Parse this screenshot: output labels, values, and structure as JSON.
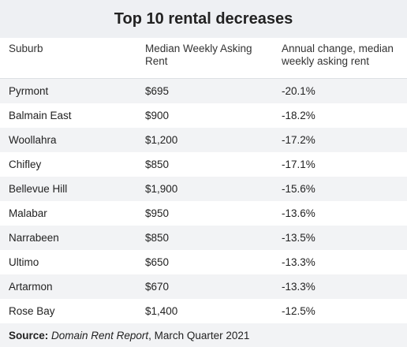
{
  "title": "Top 10 rental decreases",
  "columns": [
    "Suburb",
    "Median Weekly Asking Rent",
    "Annual change, median weekly asking rent"
  ],
  "rows": [
    {
      "suburb": "Pyrmont",
      "rent": "$695",
      "change": "-20.1%"
    },
    {
      "suburb": "Balmain East",
      "rent": "$900",
      "change": "-18.2%"
    },
    {
      "suburb": "Woollahra",
      "rent": "$1,200",
      "change": "-17.2%"
    },
    {
      "suburb": "Chifley",
      "rent": "$850",
      "change": "-17.1%"
    },
    {
      "suburb": "Bellevue Hill",
      "rent": "$1,900",
      "change": "-15.6%"
    },
    {
      "suburb": "Malabar",
      "rent": "$950",
      "change": "-13.6%"
    },
    {
      "suburb": "Narrabeen",
      "rent": "$850",
      "change": "-13.5%"
    },
    {
      "suburb": "Ultimo",
      "rent": "$650",
      "change": "-13.3%"
    },
    {
      "suburb": "Artarmon",
      "rent": "$670",
      "change": "-13.3%"
    },
    {
      "suburb": "Rose Bay",
      "rent": "$1,400",
      "change": "-12.5%"
    }
  ],
  "source": {
    "label": "Source:",
    "report": "Domain Rent Report",
    "period": ", March Quarter 2021"
  }
}
